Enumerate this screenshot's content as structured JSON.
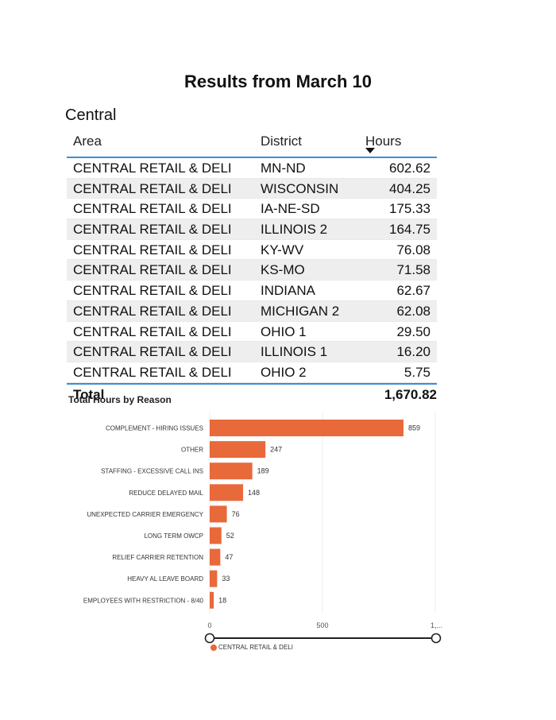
{
  "title": "Results from March 10",
  "region": "Central",
  "table": {
    "headers": {
      "area": "Area",
      "district": "District",
      "hours": "Hours"
    },
    "rows": [
      {
        "area": "CENTRAL RETAIL & DELI",
        "district": "MN-ND",
        "hours": "602.62"
      },
      {
        "area": "CENTRAL RETAIL & DELI",
        "district": "WISCONSIN",
        "hours": "404.25"
      },
      {
        "area": "CENTRAL RETAIL & DELI",
        "district": "IA-NE-SD",
        "hours": "175.33"
      },
      {
        "area": "CENTRAL RETAIL & DELI",
        "district": "ILLINOIS 2",
        "hours": "164.75"
      },
      {
        "area": "CENTRAL RETAIL & DELI",
        "district": "KY-WV",
        "hours": "76.08"
      },
      {
        "area": "CENTRAL RETAIL & DELI",
        "district": "KS-MO",
        "hours": "71.58"
      },
      {
        "area": "CENTRAL RETAIL & DELI",
        "district": "INDIANA",
        "hours": "62.67"
      },
      {
        "area": "CENTRAL RETAIL & DELI",
        "district": "MICHIGAN 2",
        "hours": "62.08"
      },
      {
        "area": "CENTRAL RETAIL & DELI",
        "district": "OHIO 1",
        "hours": "29.50"
      },
      {
        "area": "CENTRAL RETAIL & DELI",
        "district": "ILLINOIS 1",
        "hours": "16.20"
      },
      {
        "area": "CENTRAL RETAIL & DELI",
        "district": "OHIO 2",
        "hours": "5.75"
      }
    ],
    "total_label": "Total",
    "total_value": "1,670.82",
    "sort_icon": "sort-descending-icon"
  },
  "chart_data": {
    "type": "bar",
    "orientation": "horizontal",
    "title": "Total Hours by Reason",
    "categories": [
      "COMPLEMENT - HIRING ISSUES",
      "OTHER",
      "STAFFING - EXCESSIVE CALL INS",
      "REDUCE DELAYED MAIL",
      "UNEXPECTED CARRIER EMERGENCY",
      "LONG TERM OWCP",
      "RELIEF CARRIER RETENTION",
      "HEAVY AL LEAVE BOARD",
      "EMPLOYEES WITH RESTRICTION - 8/40"
    ],
    "values": [
      859,
      247,
      189,
      148,
      76,
      52,
      47,
      33,
      18
    ],
    "xlim": [
      0,
      1000
    ],
    "x_ticks": [
      "0",
      "500",
      "1,..."
    ],
    "legend": [
      "CENTRAL RETAIL & DELI"
    ],
    "legend_position": "bottom-left",
    "grid": true,
    "bar_color": "#e8693a"
  }
}
